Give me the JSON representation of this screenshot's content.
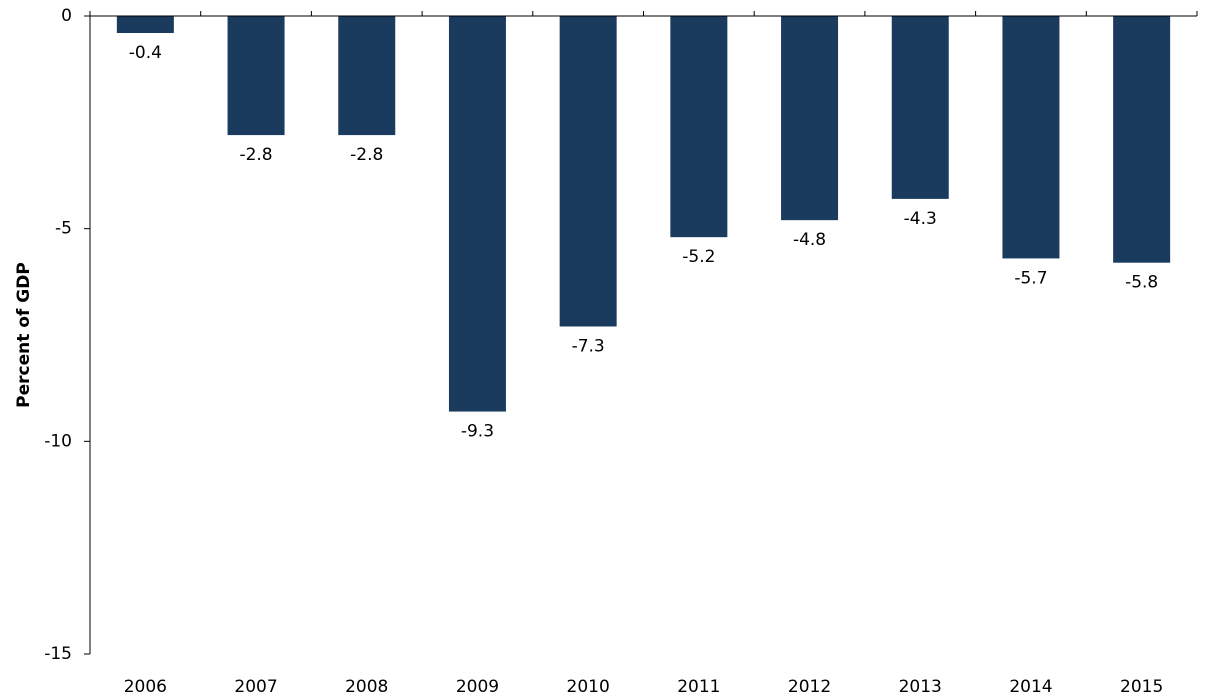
{
  "chart_data": {
    "type": "bar",
    "y_label": "Percent of GDP",
    "categories": [
      "2006",
      "2007",
      "2008",
      "2009",
      "2010",
      "2011",
      "2012",
      "2013",
      "2014",
      "2015"
    ],
    "values": [
      -0.4,
      -2.8,
      -2.8,
      -9.3,
      -7.3,
      -5.2,
      -4.8,
      -4.3,
      -5.7,
      -5.8
    ],
    "color": "#1a3a5e",
    "ylim": [
      -15,
      0
    ],
    "yticks": [
      0,
      -5,
      -10,
      -15
    ],
    "grid": false
  }
}
